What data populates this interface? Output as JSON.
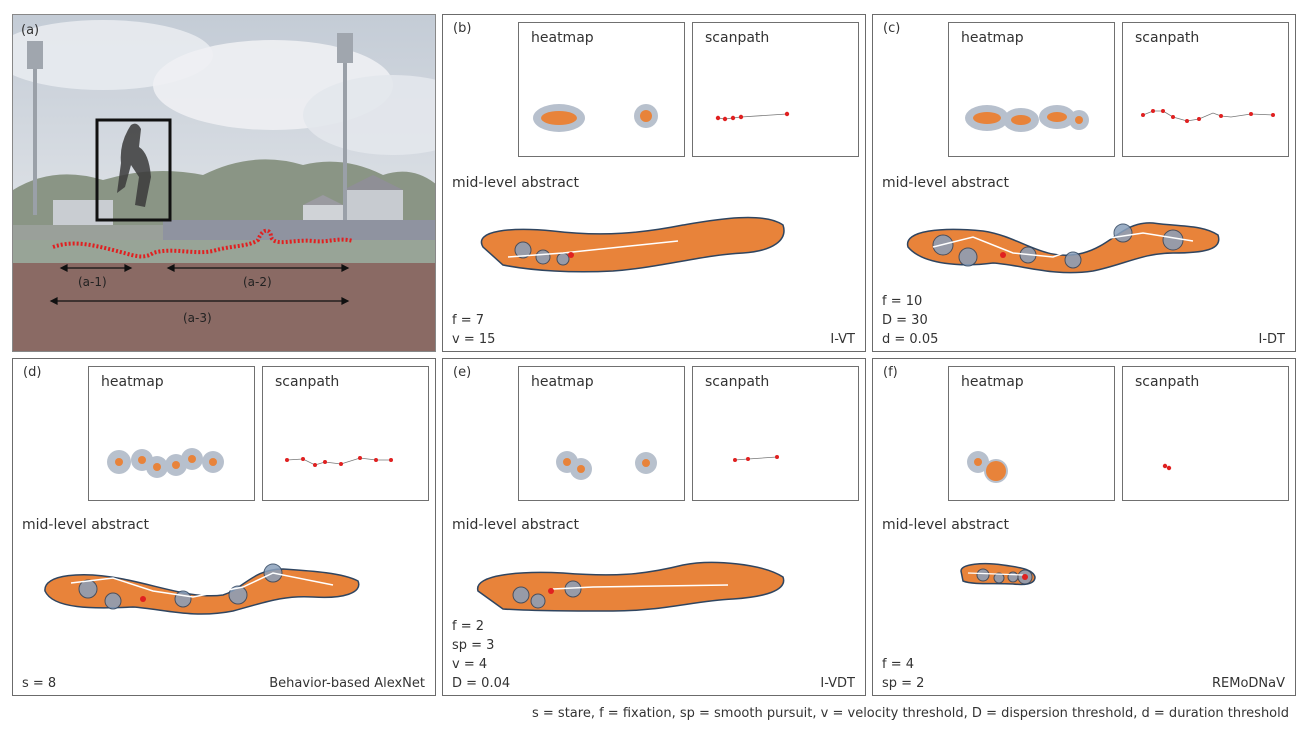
{
  "panels": {
    "a": {
      "label": "(a)",
      "segments": [
        "(a-1)",
        "(a-2)",
        "(a-3)"
      ]
    },
    "b": {
      "label": "(b)",
      "heatmap_title": "heatmap",
      "scanpath_title": "scanpath",
      "abstract_title": "mid-level abstract",
      "params": [
        "f = 7",
        "v = 15"
      ],
      "method": "I-VT"
    },
    "c": {
      "label": "(c)",
      "heatmap_title": "heatmap",
      "scanpath_title": "scanpath",
      "abstract_title": "mid-level abstract",
      "params": [
        "f = 10",
        "D = 30",
        "d = 0.05"
      ],
      "method": "I-DT"
    },
    "d": {
      "label": "(d)",
      "heatmap_title": "heatmap",
      "scanpath_title": "scanpath",
      "abstract_title": "mid-level abstract",
      "params": [
        "s = 8"
      ],
      "method": "Behavior-based AlexNet"
    },
    "e": {
      "label": "(e)",
      "heatmap_title": "heatmap",
      "scanpath_title": "scanpath",
      "abstract_title": "mid-level abstract",
      "params": [
        "f = 2",
        "sp = 3",
        "v = 4",
        "D = 0.04"
      ],
      "method": "I-VDT"
    },
    "f": {
      "label": "(f)",
      "heatmap_title": "heatmap",
      "scanpath_title": "scanpath",
      "abstract_title": "mid-level abstract",
      "params": [
        "f = 4",
        "sp = 2"
      ],
      "method": "REMoDNaV"
    }
  },
  "legend": "s = stare, f = fixation, sp = smooth pursuit, v = velocity threshold, D = dispersion threshold, d = duration threshold",
  "colors": {
    "gaze_red": "#e02020",
    "heat_orange": "#e8833a",
    "heat_halo": "#9aa6b8",
    "path_dark": "#2f4560",
    "sky": "#c9d2dc",
    "track": "#8a6a64"
  }
}
